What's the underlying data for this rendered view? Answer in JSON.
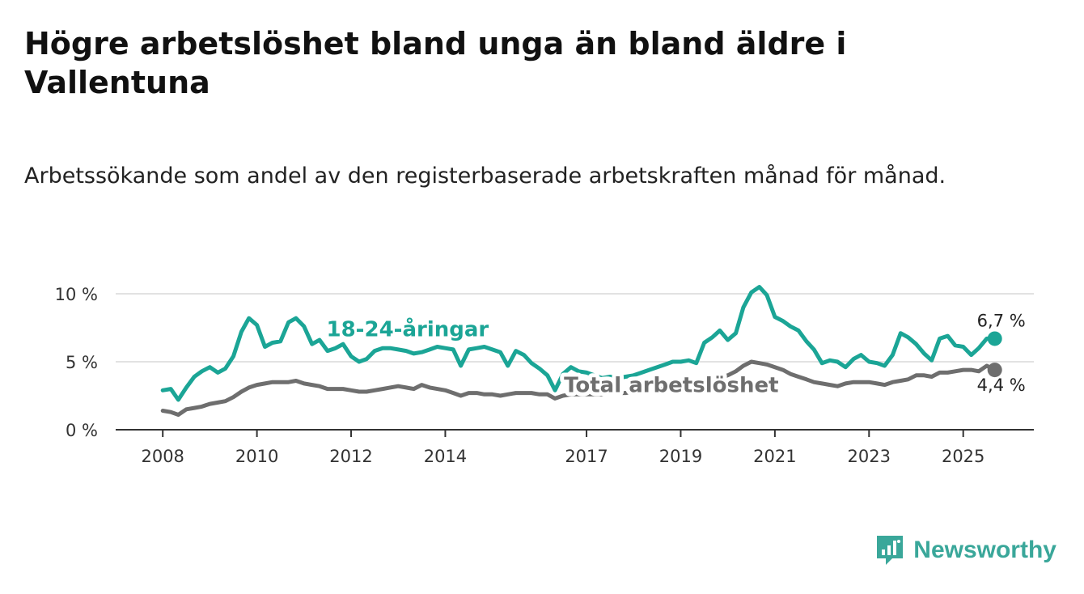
{
  "title": "Högre arbetslöshet bland unga än bland äldre i Vallentuna",
  "subtitle": "Arbetssökande som andel av den registerbaserade arbetskraften månad för månad.",
  "brand": {
    "name": "Newsworthy",
    "color": "#3aa79a"
  },
  "chart_data": {
    "type": "line",
    "title": "Högre arbetslöshet bland unga än bland äldre i Vallentuna",
    "xlabel": "",
    "ylabel": "",
    "x_range": [
      2007.0,
      2026.5
    ],
    "ylim": [
      0,
      10
    ],
    "y_ticks": [
      0,
      5,
      10
    ],
    "y_tick_labels": [
      "0 %",
      "5 %",
      "10 %"
    ],
    "x_ticks": [
      2008,
      2010,
      2012,
      2014,
      2017,
      2019,
      2021,
      2023,
      2025
    ],
    "x_tick_labels": [
      "2008",
      "2010",
      "2012",
      "2014",
      "2017",
      "2019",
      "2021",
      "2023",
      "2025"
    ],
    "grid": true,
    "series": [
      {
        "name": "18-24-åringar",
        "color": "#1ba596",
        "end_label": "6,7 %",
        "points": [
          [
            2008.0,
            2.9
          ],
          [
            2008.17,
            3.0
          ],
          [
            2008.33,
            2.2
          ],
          [
            2008.5,
            3.1
          ],
          [
            2008.67,
            3.9
          ],
          [
            2008.83,
            4.3
          ],
          [
            2009.0,
            4.6
          ],
          [
            2009.17,
            4.2
          ],
          [
            2009.33,
            4.5
          ],
          [
            2009.5,
            5.4
          ],
          [
            2009.67,
            7.2
          ],
          [
            2009.83,
            8.2
          ],
          [
            2010.0,
            7.7
          ],
          [
            2010.17,
            6.1
          ],
          [
            2010.33,
            6.4
          ],
          [
            2010.5,
            6.5
          ],
          [
            2010.67,
            7.9
          ],
          [
            2010.83,
            8.2
          ],
          [
            2011.0,
            7.6
          ],
          [
            2011.17,
            6.3
          ],
          [
            2011.33,
            6.6
          ],
          [
            2011.5,
            5.8
          ],
          [
            2011.67,
            6.0
          ],
          [
            2011.83,
            6.3
          ],
          [
            2012.0,
            5.4
          ],
          [
            2012.17,
            5.0
          ],
          [
            2012.33,
            5.2
          ],
          [
            2012.5,
            5.8
          ],
          [
            2012.67,
            6.0
          ],
          [
            2012.83,
            6.0
          ],
          [
            2013.0,
            5.9
          ],
          [
            2013.17,
            5.8
          ],
          [
            2013.33,
            5.6
          ],
          [
            2013.5,
            5.7
          ],
          [
            2013.67,
            5.9
          ],
          [
            2013.83,
            6.1
          ],
          [
            2014.0,
            6.0
          ],
          [
            2014.17,
            5.9
          ],
          [
            2014.33,
            4.7
          ],
          [
            2014.5,
            5.9
          ],
          [
            2014.67,
            6.0
          ],
          [
            2014.83,
            6.1
          ],
          [
            2015.0,
            5.9
          ],
          [
            2015.17,
            5.7
          ],
          [
            2015.33,
            4.7
          ],
          [
            2015.5,
            5.8
          ],
          [
            2015.67,
            5.5
          ],
          [
            2015.83,
            4.9
          ],
          [
            2016.0,
            4.5
          ],
          [
            2016.17,
            4.0
          ],
          [
            2016.33,
            2.9
          ],
          [
            2016.5,
            4.1
          ],
          [
            2016.67,
            4.6
          ],
          [
            2016.83,
            4.3
          ],
          [
            2017.0,
            4.2
          ],
          [
            2017.17,
            4.0
          ],
          [
            2017.33,
            3.8
          ],
          [
            2017.5,
            3.9
          ],
          [
            2017.67,
            3.8
          ],
          [
            2017.83,
            3.9
          ],
          [
            2018.0,
            4.0
          ],
          [
            2018.17,
            4.2
          ],
          [
            2018.33,
            4.4
          ],
          [
            2018.5,
            4.6
          ],
          [
            2018.67,
            4.8
          ],
          [
            2018.83,
            5.0
          ],
          [
            2019.0,
            5.0
          ],
          [
            2019.17,
            5.1
          ],
          [
            2019.33,
            4.9
          ],
          [
            2019.5,
            6.4
          ],
          [
            2019.67,
            6.8
          ],
          [
            2019.83,
            7.3
          ],
          [
            2020.0,
            6.6
          ],
          [
            2020.17,
            7.1
          ],
          [
            2020.33,
            9.0
          ],
          [
            2020.5,
            10.1
          ],
          [
            2020.67,
            10.5
          ],
          [
            2020.83,
            9.9
          ],
          [
            2021.0,
            8.3
          ],
          [
            2021.17,
            8.0
          ],
          [
            2021.33,
            7.6
          ],
          [
            2021.5,
            7.3
          ],
          [
            2021.67,
            6.5
          ],
          [
            2021.83,
            5.9
          ],
          [
            2022.0,
            4.9
          ],
          [
            2022.17,
            5.1
          ],
          [
            2022.33,
            5.0
          ],
          [
            2022.5,
            4.6
          ],
          [
            2022.67,
            5.2
          ],
          [
            2022.83,
            5.5
          ],
          [
            2023.0,
            5.0
          ],
          [
            2023.17,
            4.9
          ],
          [
            2023.33,
            4.7
          ],
          [
            2023.5,
            5.5
          ],
          [
            2023.67,
            7.1
          ],
          [
            2023.83,
            6.8
          ],
          [
            2024.0,
            6.3
          ],
          [
            2024.17,
            5.6
          ],
          [
            2024.33,
            5.1
          ],
          [
            2024.5,
            6.7
          ],
          [
            2024.67,
            6.9
          ],
          [
            2024.83,
            6.2
          ],
          [
            2025.0,
            6.1
          ],
          [
            2025.17,
            5.5
          ],
          [
            2025.33,
            6.0
          ],
          [
            2025.5,
            6.7
          ],
          [
            2025.67,
            6.7
          ]
        ]
      },
      {
        "name": "Total arbetslöshet",
        "color": "#6e6e6e",
        "end_label": "4,4 %",
        "points": [
          [
            2008.0,
            1.4
          ],
          [
            2008.17,
            1.3
          ],
          [
            2008.33,
            1.1
          ],
          [
            2008.5,
            1.5
          ],
          [
            2008.67,
            1.6
          ],
          [
            2008.83,
            1.7
          ],
          [
            2009.0,
            1.9
          ],
          [
            2009.17,
            2.0
          ],
          [
            2009.33,
            2.1
          ],
          [
            2009.5,
            2.4
          ],
          [
            2009.67,
            2.8
          ],
          [
            2009.83,
            3.1
          ],
          [
            2010.0,
            3.3
          ],
          [
            2010.17,
            3.4
          ],
          [
            2010.33,
            3.5
          ],
          [
            2010.5,
            3.5
          ],
          [
            2010.67,
            3.5
          ],
          [
            2010.83,
            3.6
          ],
          [
            2011.0,
            3.4
          ],
          [
            2011.17,
            3.3
          ],
          [
            2011.33,
            3.2
          ],
          [
            2011.5,
            3.0
          ],
          [
            2011.67,
            3.0
          ],
          [
            2011.83,
            3.0
          ],
          [
            2012.0,
            2.9
          ],
          [
            2012.17,
            2.8
          ],
          [
            2012.33,
            2.8
          ],
          [
            2012.5,
            2.9
          ],
          [
            2012.67,
            3.0
          ],
          [
            2012.83,
            3.1
          ],
          [
            2013.0,
            3.2
          ],
          [
            2013.17,
            3.1
          ],
          [
            2013.33,
            3.0
          ],
          [
            2013.5,
            3.3
          ],
          [
            2013.67,
            3.1
          ],
          [
            2013.83,
            3.0
          ],
          [
            2014.0,
            2.9
          ],
          [
            2014.17,
            2.7
          ],
          [
            2014.33,
            2.5
          ],
          [
            2014.5,
            2.7
          ],
          [
            2014.67,
            2.7
          ],
          [
            2014.83,
            2.6
          ],
          [
            2015.0,
            2.6
          ],
          [
            2015.17,
            2.5
          ],
          [
            2015.33,
            2.6
          ],
          [
            2015.5,
            2.7
          ],
          [
            2015.67,
            2.7
          ],
          [
            2015.83,
            2.7
          ],
          [
            2016.0,
            2.6
          ],
          [
            2016.17,
            2.6
          ],
          [
            2016.33,
            2.3
          ],
          [
            2016.5,
            2.5
          ],
          [
            2016.67,
            2.6
          ],
          [
            2016.83,
            2.6
          ],
          [
            2017.0,
            2.6
          ],
          [
            2017.17,
            2.6
          ],
          [
            2017.33,
            2.6
          ],
          [
            2017.5,
            2.7
          ],
          [
            2017.67,
            2.7
          ],
          [
            2017.83,
            2.7
          ],
          [
            2018.0,
            2.8
          ],
          [
            2018.17,
            2.8
          ],
          [
            2018.33,
            2.9
          ],
          [
            2018.5,
            3.0
          ],
          [
            2018.67,
            3.0
          ],
          [
            2018.83,
            3.1
          ],
          [
            2019.0,
            3.2
          ],
          [
            2019.17,
            3.3
          ],
          [
            2019.33,
            3.3
          ],
          [
            2019.5,
            3.5
          ],
          [
            2019.67,
            3.7
          ],
          [
            2019.83,
            3.8
          ],
          [
            2020.0,
            4.0
          ],
          [
            2020.17,
            4.3
          ],
          [
            2020.33,
            4.7
          ],
          [
            2020.5,
            5.0
          ],
          [
            2020.67,
            4.9
          ],
          [
            2020.83,
            4.8
          ],
          [
            2021.0,
            4.6
          ],
          [
            2021.17,
            4.4
          ],
          [
            2021.33,
            4.1
          ],
          [
            2021.5,
            3.9
          ],
          [
            2021.67,
            3.7
          ],
          [
            2021.83,
            3.5
          ],
          [
            2022.0,
            3.4
          ],
          [
            2022.17,
            3.3
          ],
          [
            2022.33,
            3.2
          ],
          [
            2022.5,
            3.4
          ],
          [
            2022.67,
            3.5
          ],
          [
            2022.83,
            3.5
          ],
          [
            2023.0,
            3.5
          ],
          [
            2023.17,
            3.4
          ],
          [
            2023.33,
            3.3
          ],
          [
            2023.5,
            3.5
          ],
          [
            2023.67,
            3.6
          ],
          [
            2023.83,
            3.7
          ],
          [
            2024.0,
            4.0
          ],
          [
            2024.17,
            4.0
          ],
          [
            2024.33,
            3.9
          ],
          [
            2024.5,
            4.2
          ],
          [
            2024.67,
            4.2
          ],
          [
            2024.83,
            4.3
          ],
          [
            2025.0,
            4.4
          ],
          [
            2025.17,
            4.4
          ],
          [
            2025.33,
            4.3
          ],
          [
            2025.5,
            4.7
          ],
          [
            2025.67,
            4.4
          ]
        ]
      }
    ],
    "annotations": [
      {
        "text": "18-24-åringar",
        "series": 0,
        "x": 2013.2,
        "y": 7.4
      },
      {
        "text": "Total arbetslöshet",
        "series": 1,
        "x": 2018.8,
        "y": 3.3
      }
    ]
  }
}
